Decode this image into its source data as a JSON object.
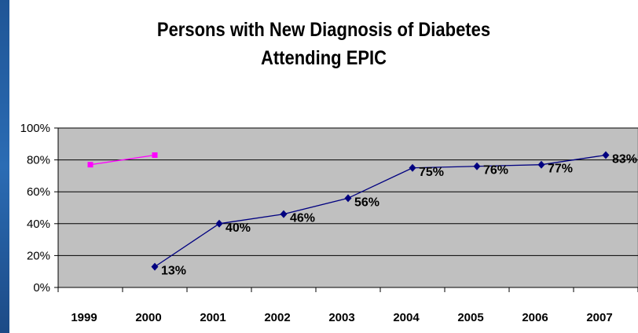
{
  "slide": {
    "accent": "#2a66aa"
  },
  "chart_data": {
    "type": "line",
    "title_line1": "Persons with New Diagnosis of Diabetes",
    "title_line2": "Attending EPIC",
    "xlabel": "",
    "ylabel": "",
    "categories": [
      "1999",
      "2000",
      "2001",
      "2002",
      "2003",
      "2004",
      "2005",
      "2006",
      "2007"
    ],
    "y_ticks": [
      "0%",
      "20%",
      "40%",
      "60%",
      "80%",
      "100%"
    ],
    "ylim": [
      0,
      100
    ],
    "grid": true,
    "plot_background": "#c0c0c0",
    "series": [
      {
        "color": "#ff00ff",
        "marker": "square",
        "points": [
          {
            "x": "1999",
            "y": 77
          },
          {
            "x": "2000",
            "y": 83
          }
        ],
        "labels": []
      },
      {
        "color": "#000080",
        "marker": "diamond",
        "points": [
          {
            "x": "2000",
            "y": 13
          },
          {
            "x": "2001",
            "y": 40
          },
          {
            "x": "2002",
            "y": 46
          },
          {
            "x": "2003",
            "y": 56
          },
          {
            "x": "2004",
            "y": 75
          },
          {
            "x": "2005",
            "y": 76
          },
          {
            "x": "2006",
            "y": 77
          },
          {
            "x": "2007",
            "y": 83
          }
        ],
        "labels": [
          "13%",
          "40%",
          "46%",
          "56%",
          "75%",
          "76%",
          "77%",
          "83%"
        ]
      }
    ]
  }
}
